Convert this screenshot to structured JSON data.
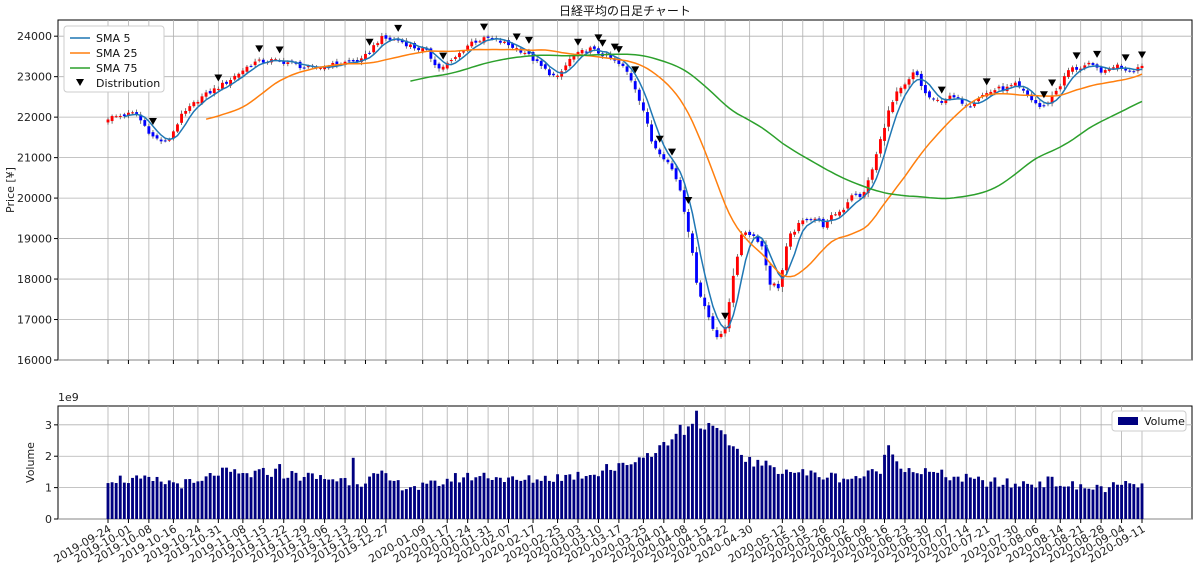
{
  "chart_data": [
    {
      "type": "candlestick",
      "title": "日経平均の日足チャート",
      "ylabel": "Price [¥]",
      "ylim": [
        16000,
        24400
      ],
      "yticks": [
        16000,
        17000,
        18000,
        19000,
        20000,
        21000,
        22000,
        23000,
        24000
      ],
      "grid": true,
      "legend_position": "top-left",
      "legend": [
        {
          "label": "SMA 5",
          "color": "#1f77b4",
          "kind": "line"
        },
        {
          "label": "SMA 25",
          "color": "#ff7f0e",
          "kind": "line"
        },
        {
          "label": "SMA 75",
          "color": "#2ca02c",
          "kind": "line"
        },
        {
          "label": "Distribution",
          "color": "#000000",
          "kind": "marker"
        }
      ],
      "colors": {
        "up": "#ff0000",
        "down": "#0000ff"
      },
      "x_range": [
        "2019-09-24",
        "2020-09-11"
      ],
      "xticks": [
        "2019-09-24",
        "2019-10-01",
        "2019-10-08",
        "2019-10-16",
        "2019-10-24",
        "2019-10-31",
        "2019-11-08",
        "2019-11-15",
        "2019-11-22",
        "2019-11-29",
        "2019-12-06",
        "2019-12-13",
        "2019-12-20",
        "2019-12-27",
        "2020-01-09",
        "2020-01-17",
        "2020-01-24",
        "2020-01-31",
        "2020-02-07",
        "2020-02-17",
        "2020-02-25",
        "2020-03-03",
        "2020-03-10",
        "2020-03-17",
        "2020-03-25",
        "2020-04-01",
        "2020-04-08",
        "2020-04-15",
        "2020-04-22",
        "2020-04-30",
        "2020-05-12",
        "2020-05-19",
        "2020-05-26",
        "2020-06-02",
        "2020-06-09",
        "2020-06-16",
        "2020-06-23",
        "2020-06-30",
        "2020-07-07",
        "2020-07-14",
        "2020-07-21",
        "2020-07-30",
        "2020-08-06",
        "2020-08-14",
        "2020-08-21",
        "2020-08-28",
        "2020-09-04",
        "2020-09-11"
      ],
      "close_anchors": [
        [
          0,
          21980
        ],
        [
          6,
          22100
        ],
        [
          10,
          21500
        ],
        [
          13,
          21350
        ],
        [
          16,
          22000
        ],
        [
          20,
          22450
        ],
        [
          26,
          22850
        ],
        [
          32,
          23350
        ],
        [
          36,
          23400
        ],
        [
          40,
          23350
        ],
        [
          44,
          23200
        ],
        [
          48,
          23250
        ],
        [
          52,
          23350
        ],
        [
          56,
          23400
        ],
        [
          60,
          23950
        ],
        [
          64,
          23900
        ],
        [
          68,
          23700
        ],
        [
          70,
          23650
        ],
        [
          73,
          23200
        ],
        [
          76,
          23400
        ],
        [
          80,
          23850
        ],
        [
          84,
          23950
        ],
        [
          88,
          23800
        ],
        [
          92,
          23600
        ],
        [
          96,
          23200
        ],
        [
          99,
          22950
        ],
        [
          102,
          23450
        ],
        [
          106,
          23700
        ],
        [
          110,
          23500
        ],
        [
          114,
          23200
        ],
        [
          116,
          22800
        ],
        [
          118,
          22200
        ],
        [
          120,
          21350
        ],
        [
          122,
          21100
        ],
        [
          124,
          20800
        ],
        [
          126,
          20300
        ],
        [
          128,
          19200
        ],
        [
          130,
          17800
        ],
        [
          132,
          17200
        ],
        [
          134,
          16600
        ],
        [
          136,
          16700
        ],
        [
          138,
          18200
        ],
        [
          140,
          19200
        ],
        [
          142,
          19100
        ],
        [
          144,
          18900
        ],
        [
          146,
          17900
        ],
        [
          148,
          17800
        ],
        [
          150,
          19000
        ],
        [
          152,
          19300
        ],
        [
          154,
          19500
        ],
        [
          156,
          19500
        ],
        [
          158,
          19300
        ],
        [
          160,
          19600
        ],
        [
          162,
          19700
        ],
        [
          164,
          20100
        ],
        [
          166,
          20000
        ],
        [
          168,
          20500
        ],
        [
          170,
          21300
        ],
        [
          172,
          22100
        ],
        [
          174,
          22600
        ],
        [
          176,
          22800
        ],
        [
          178,
          23150
        ],
        [
          180,
          22600
        ],
        [
          182,
          22400
        ],
        [
          184,
          22400
        ],
        [
          186,
          22500
        ],
        [
          188,
          22400
        ],
        [
          190,
          22300
        ],
        [
          192,
          22500
        ],
        [
          194,
          22600
        ],
        [
          196,
          22700
        ],
        [
          198,
          22700
        ],
        [
          200,
          22800
        ],
        [
          202,
          22600
        ],
        [
          204,
          22400
        ],
        [
          206,
          22200
        ],
        [
          208,
          22500
        ],
        [
          210,
          22800
        ],
        [
          212,
          23200
        ],
        [
          214,
          23200
        ],
        [
          216,
          23300
        ],
        [
          218,
          23200
        ],
        [
          220,
          23100
        ],
        [
          222,
          23300
        ],
        [
          224,
          23200
        ],
        [
          226,
          23150
        ],
        [
          228,
          23300
        ]
      ],
      "volume_anchors": [
        [
          0,
          1.3
        ],
        [
          10,
          1.2
        ],
        [
          20,
          1.1
        ],
        [
          24,
          1.5
        ],
        [
          30,
          1.4
        ],
        [
          36,
          1.5
        ],
        [
          40,
          1.4
        ],
        [
          48,
          1.3
        ],
        [
          56,
          1.2
        ],
        [
          60,
          1.4
        ],
        [
          64,
          1.1
        ],
        [
          70,
          1.0
        ],
        [
          76,
          1.3
        ],
        [
          84,
          1.4
        ],
        [
          90,
          1.2
        ],
        [
          96,
          1.3
        ],
        [
          104,
          1.4
        ],
        [
          112,
          1.6
        ],
        [
          118,
          2.0
        ],
        [
          122,
          2.3
        ],
        [
          126,
          2.7
        ],
        [
          130,
          3.1
        ],
        [
          134,
          2.8
        ],
        [
          138,
          2.3
        ],
        [
          142,
          1.8
        ],
        [
          148,
          1.6
        ],
        [
          156,
          1.4
        ],
        [
          164,
          1.3
        ],
        [
          170,
          1.5
        ],
        [
          172,
          2.2
        ],
        [
          176,
          1.6
        ],
        [
          184,
          1.4
        ],
        [
          192,
          1.2
        ],
        [
          200,
          1.1
        ],
        [
          208,
          1.2
        ],
        [
          214,
          1.0
        ],
        [
          220,
          1.0
        ],
        [
          228,
          1.1
        ]
      ],
      "volume_spikes": [
        [
          38,
          1.75
        ],
        [
          54,
          1.95
        ],
        [
          110,
          1.75
        ],
        [
          122,
          2.35
        ],
        [
          126,
          3.0
        ],
        [
          128,
          2.95
        ],
        [
          130,
          3.45
        ],
        [
          132,
          2.85
        ],
        [
          134,
          2.9
        ],
        [
          172,
          2.35
        ]
      ],
      "distribution_days": [
        10,
        24,
        33,
        38,
        58,
        64,
        74,
        83,
        90,
        93,
        104,
        108,
        109,
        112,
        113,
        116,
        122,
        124,
        128,
        136,
        184,
        194,
        206,
        208,
        214,
        218,
        224,
        228
      ],
      "first_trading_day": "2019-09-24"
    },
    {
      "type": "bar",
      "ylabel": "Volume",
      "ylim": [
        0,
        3.6
      ],
      "yticks": [
        0,
        1,
        2,
        3
      ],
      "exponent_label": "1e9",
      "legend": [
        {
          "label": "Volume",
          "color": "#000080"
        }
      ],
      "legend_position": "top-right",
      "grid": true
    }
  ]
}
